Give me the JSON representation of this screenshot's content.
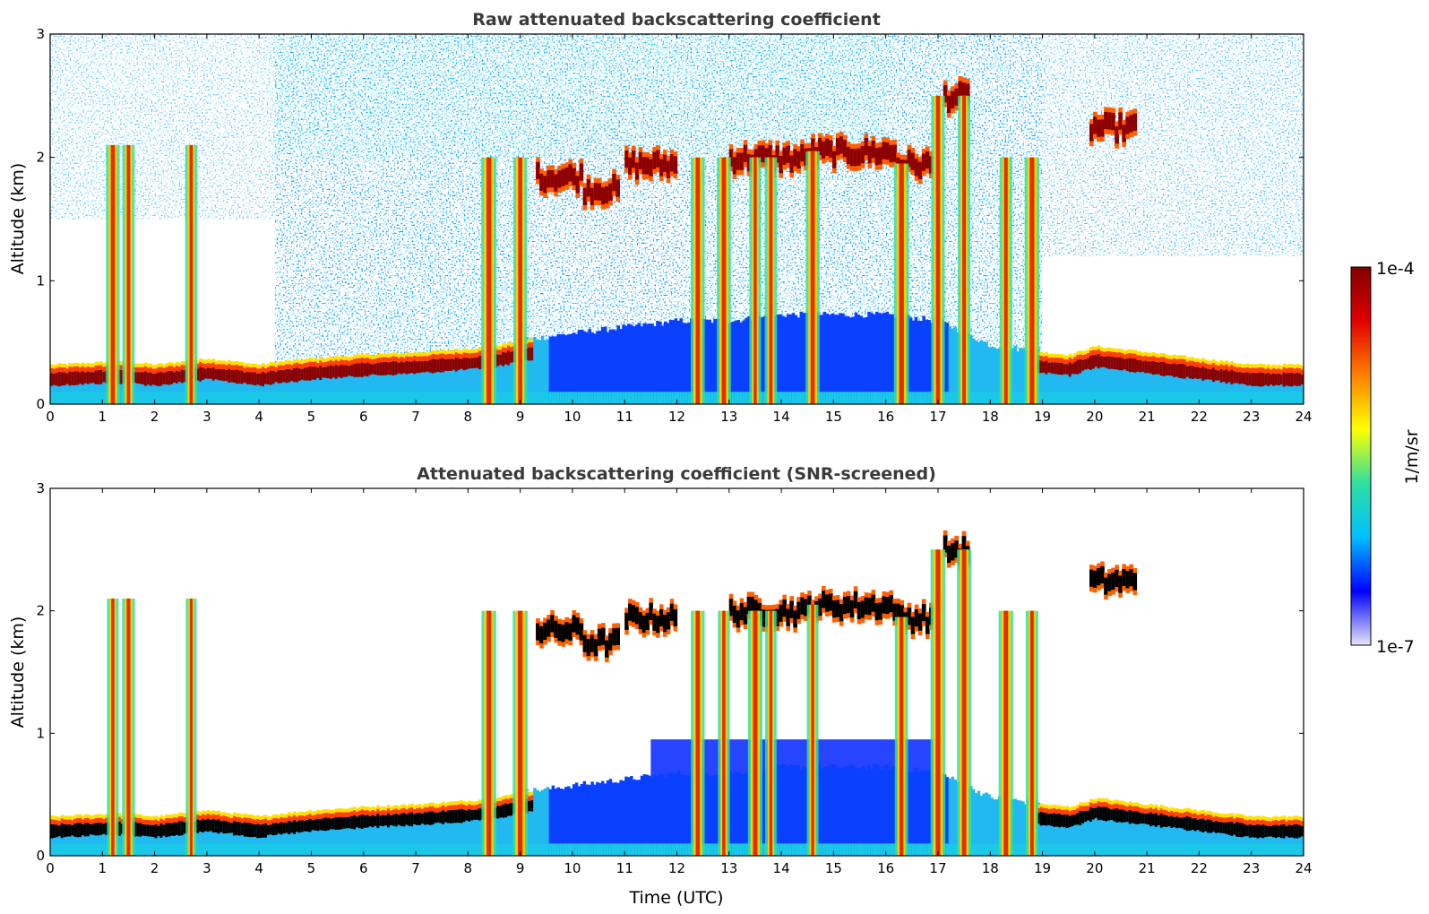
{
  "chart_data": [
    {
      "type": "heatmap",
      "title": "Raw attenuated backscattering coefficient",
      "xlabel": "",
      "ylabel": "Altitude (km)",
      "xlim": [
        0,
        24
      ],
      "ylim": [
        0,
        3
      ],
      "x_ticks": [
        "0",
        "1",
        "2",
        "3",
        "4",
        "5",
        "6",
        "7",
        "8",
        "9",
        "10",
        "11",
        "12",
        "13",
        "14",
        "15",
        "16",
        "17",
        "18",
        "19",
        "20",
        "21",
        "22",
        "23",
        "24"
      ],
      "y_ticks": [
        "0",
        "1",
        "2",
        "3"
      ],
      "boundary_layer_top_km": {
        "x": [
          0,
          1,
          1.5,
          2,
          3,
          4,
          4.3,
          5,
          6,
          7,
          8,
          8.5,
          9,
          9.5,
          10,
          11,
          12,
          13,
          14,
          15,
          16,
          17,
          18,
          19,
          19.5,
          20,
          21,
          22,
          23,
          24
        ],
        "y": [
          0.2,
          0.22,
          0.22,
          0.2,
          0.25,
          0.2,
          0.22,
          0.25,
          0.28,
          0.3,
          0.33,
          0.35,
          0.4,
          0.42,
          0.45,
          0.5,
          0.55,
          0.55,
          0.6,
          0.6,
          0.6,
          0.55,
          0.35,
          0.3,
          0.28,
          0.35,
          0.3,
          0.25,
          0.2,
          0.2
        ]
      },
      "cloud_layers": [
        {
          "x_start": 9.3,
          "x_end": 10.2,
          "altitude_km": 1.85
        },
        {
          "x_start": 10.2,
          "x_end": 10.9,
          "altitude_km": 1.75
        },
        {
          "x_start": 11.0,
          "x_end": 12.0,
          "altitude_km": 1.95
        },
        {
          "x_start": 13.0,
          "x_end": 14.5,
          "altitude_km": 2.0
        },
        {
          "x_start": 14.5,
          "x_end": 16.2,
          "altitude_km": 2.05
        },
        {
          "x_start": 16.2,
          "x_end": 16.9,
          "altitude_km": 1.95
        },
        {
          "x_start": 17.1,
          "x_end": 17.6,
          "altitude_km": 2.5
        },
        {
          "x_start": 19.9,
          "x_end": 20.8,
          "altitude_km": 2.25
        }
      ],
      "precipitation_streaks_utc": [
        1.2,
        1.5,
        2.7,
        8.4,
        9.0,
        12.4,
        12.9,
        13.5,
        13.8,
        14.6,
        16.3,
        17.0,
        17.5,
        18.3,
        18.8
      ]
    },
    {
      "type": "heatmap",
      "title": "Attenuated backscattering coefficient (SNR-screened)",
      "xlabel": "Time (UTC)",
      "ylabel": "Altitude (km)",
      "xlim": [
        0,
        24
      ],
      "ylim": [
        0,
        3
      ],
      "x_ticks": [
        "0",
        "1",
        "2",
        "3",
        "4",
        "5",
        "6",
        "7",
        "8",
        "9",
        "10",
        "11",
        "12",
        "13",
        "14",
        "15",
        "16",
        "17",
        "18",
        "19",
        "20",
        "21",
        "22",
        "23",
        "24"
      ],
      "y_ticks": [
        "0",
        "1",
        "2",
        "3"
      ],
      "screening": "SNR"
    }
  ],
  "colorbar": {
    "label": "1/m/sr",
    "max_label": "1e-4",
    "min_label": "1e-7",
    "scale": "log",
    "range": [
      1e-07,
      0.0001
    ],
    "colors": [
      "#e6e6fa",
      "#0000ff",
      "#00bfff",
      "#2fe0a0",
      "#ffff00",
      "#ff8000",
      "#e00000",
      "#800000"
    ],
    "screened_saturation_color": "#000000"
  }
}
